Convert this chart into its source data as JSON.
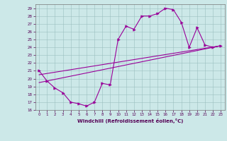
{
  "title": "",
  "xlabel": "Windchill (Refroidissement éolien,°C)",
  "bg_color": "#cce8e8",
  "line_color": "#990099",
  "marker_color": "#990099",
  "xlim": [
    -0.5,
    23.5
  ],
  "ylim": [
    16,
    29.5
  ],
  "xticks": [
    0,
    1,
    2,
    3,
    4,
    5,
    6,
    7,
    8,
    9,
    10,
    11,
    12,
    13,
    14,
    15,
    16,
    17,
    18,
    19,
    20,
    21,
    22,
    23
  ],
  "yticks": [
    16,
    17,
    18,
    19,
    20,
    21,
    22,
    23,
    24,
    25,
    26,
    27,
    28,
    29
  ],
  "curve1_x": [
    0,
    1,
    2,
    3,
    4,
    5,
    6,
    7,
    8,
    9,
    10,
    11,
    12,
    13,
    14,
    15,
    16,
    17,
    18,
    19,
    20,
    21,
    22,
    23
  ],
  "curve1_y": [
    21.0,
    19.7,
    18.8,
    18.2,
    17.0,
    16.8,
    16.5,
    17.0,
    19.4,
    19.2,
    25.0,
    26.7,
    26.3,
    28.0,
    28.0,
    28.3,
    29.0,
    28.8,
    27.2,
    24.0,
    26.5,
    24.3,
    24.0,
    24.2
  ],
  "curve2_x": [
    0,
    23
  ],
  "curve2_y": [
    20.5,
    24.2
  ],
  "curve3_x": [
    0,
    23
  ],
  "curve3_y": [
    19.5,
    24.2
  ],
  "marker": ">"
}
